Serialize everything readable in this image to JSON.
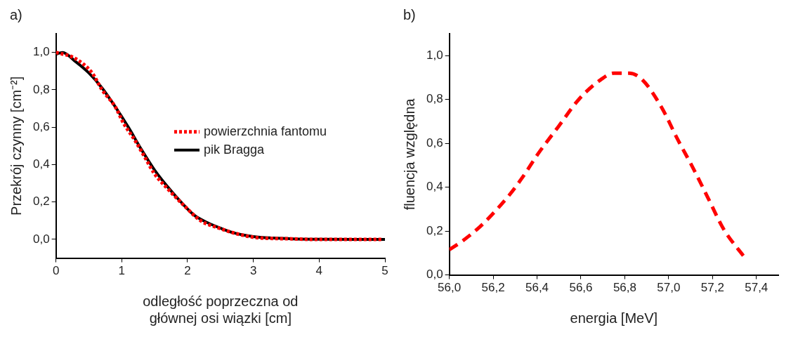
{
  "chart_data": [
    {
      "type": "line",
      "annotations": [
        "a)"
      ],
      "xlabel": "odległość poprzeczna od\ngłównej osi wiązki [cm]",
      "ylabel": "Przekrój czynny [cm⁻²]",
      "xlim": [
        0,
        5
      ],
      "xticks": [
        0,
        1,
        2,
        3,
        4,
        5
      ],
      "ylim": [
        -0.1,
        1.1
      ],
      "yticks": [
        {
          "value": 0,
          "label": "0,0"
        },
        {
          "value": 0.2,
          "label": "0,2"
        },
        {
          "value": 0.4,
          "label": "0,4"
        },
        {
          "value": 0.6,
          "label": "0,6"
        },
        {
          "value": 0.8,
          "label": "0,8"
        },
        {
          "value": 1,
          "label": "1,0"
        }
      ],
      "grid": false,
      "legend": "right",
      "marker": "none",
      "series": [
        {
          "name": "powierzchnia fantomu",
          "color": "#ff0000",
          "line_style": "dotted",
          "x": [
            0,
            0.28,
            0.55,
            0.7,
            0.9,
            1.03,
            1.2,
            1.35,
            1.5,
            1.7,
            1.95,
            2.2,
            2.48,
            2.75,
            3.03,
            3.3,
            3.58,
            3.85,
            4.13,
            4.4,
            4.68,
            4.95
          ],
          "values": [
            1.0,
            0.97,
            0.89,
            0.8,
            0.71,
            0.62,
            0.53,
            0.44,
            0.35,
            0.27,
            0.18,
            0.1,
            0.06,
            0.03,
            0.01,
            0.005,
            0.003,
            0,
            0,
            0,
            0,
            0
          ]
        },
        {
          "name": "pik Bragga",
          "color": "#000000",
          "line_style": "solid",
          "x": [
            0,
            0.1,
            0.3,
            0.5,
            0.7,
            0.9,
            1.1,
            1.3,
            1.5,
            1.7,
            1.9,
            2.1,
            2.3,
            2.5,
            2.7,
            3.0,
            3.3,
            3.6,
            4.0,
            5.0
          ],
          "values": [
            0.99,
            1.0,
            0.95,
            0.89,
            0.81,
            0.71,
            0.6,
            0.48,
            0.37,
            0.28,
            0.2,
            0.13,
            0.09,
            0.06,
            0.035,
            0.015,
            0.007,
            0.003,
            0.001,
            0
          ]
        }
      ]
    },
    {
      "type": "line",
      "annotations": [
        "b)"
      ],
      "xlabel": "energia [MeV]",
      "ylabel": "fluencja względna",
      "xlim": [
        56.0,
        57.5
      ],
      "xticks": [
        {
          "value": 56.0,
          "label": "56,0"
        },
        {
          "value": 56.2,
          "label": "56,2"
        },
        {
          "value": 56.4,
          "label": "56,4"
        },
        {
          "value": 56.6,
          "label": "56,6"
        },
        {
          "value": 56.8,
          "label": "56,8"
        },
        {
          "value": 57.0,
          "label": "57,0"
        },
        {
          "value": 57.2,
          "label": "57,2"
        },
        {
          "value": 57.4,
          "label": "57,4"
        }
      ],
      "ylim": [
        0,
        1.1
      ],
      "yticks": [
        {
          "value": 0,
          "label": "0,0"
        },
        {
          "value": 0.2,
          "label": "0,2"
        },
        {
          "value": 0.4,
          "label": "0,4"
        },
        {
          "value": 0.6,
          "label": "0,6"
        },
        {
          "value": 0.8,
          "label": "0,8"
        },
        {
          "value": 1,
          "label": "1,0"
        }
      ],
      "grid": false,
      "legend": false,
      "marker": "none",
      "series": [
        {
          "color": "#ff0000",
          "line_style": "dashed",
          "x": [
            56.0,
            56.06,
            56.14,
            56.19,
            56.27,
            56.33,
            56.41,
            56.5,
            56.59,
            56.69,
            56.75,
            56.82,
            56.88,
            56.97,
            57.04,
            57.11,
            57.18,
            57.25,
            57.35
          ],
          "values": [
            0.115,
            0.155,
            0.22,
            0.27,
            0.36,
            0.44,
            0.56,
            0.68,
            0.8,
            0.89,
            0.92,
            0.92,
            0.89,
            0.76,
            0.62,
            0.49,
            0.35,
            0.21,
            0.075
          ]
        }
      ]
    }
  ]
}
